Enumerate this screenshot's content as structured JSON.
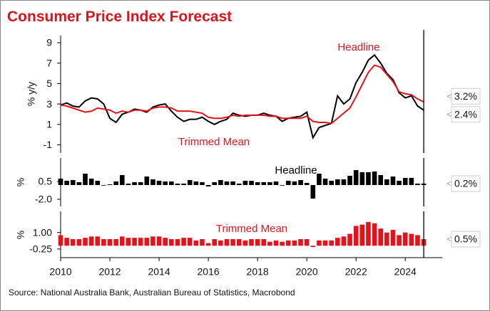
{
  "title": "Consumer Price Index Forecast",
  "source": "Source: National Australia Bank, Australian Bureau of Statistics, Macrobond",
  "chart_data": [
    {
      "type": "line",
      "ylabel": "% y/y",
      "xlim": [
        2010,
        2025.5
      ],
      "ylim": [
        -1.8,
        9.7
      ],
      "yticks": [
        -1,
        1,
        3,
        5,
        7,
        9
      ],
      "vline": 2024.75,
      "x": [
        2010,
        2010.25,
        2010.5,
        2010.75,
        2011,
        2011.25,
        2011.5,
        2011.75,
        2012,
        2012.25,
        2012.5,
        2012.75,
        2013,
        2013.25,
        2013.5,
        2013.75,
        2014,
        2014.25,
        2014.5,
        2014.75,
        2015,
        2015.25,
        2015.5,
        2015.75,
        2016,
        2016.25,
        2016.5,
        2016.75,
        2017,
        2017.25,
        2017.5,
        2017.75,
        2018,
        2018.25,
        2018.5,
        2018.75,
        2019,
        2019.25,
        2019.5,
        2019.75,
        2020,
        2020.25,
        2020.5,
        2020.75,
        2021,
        2021.25,
        2021.5,
        2021.75,
        2022,
        2022.25,
        2022.5,
        2022.75,
        2023,
        2023.25,
        2023.5,
        2023.75,
        2024,
        2024.25,
        2024.5,
        2024.75
      ],
      "series": [
        {
          "name": "Headline",
          "color": "#000000",
          "end_label": "2.4%",
          "values": [
            2.9,
            3.1,
            2.8,
            2.7,
            3.3,
            3.6,
            3.5,
            3.0,
            1.6,
            1.2,
            2.0,
            2.2,
            2.5,
            2.4,
            2.2,
            2.7,
            2.9,
            3.0,
            2.3,
            1.7,
            1.3,
            1.5,
            1.5,
            1.7,
            1.3,
            1.0,
            1.3,
            1.5,
            2.1,
            1.9,
            1.8,
            1.9,
            1.9,
            2.1,
            1.9,
            1.8,
            1.3,
            1.6,
            1.7,
            1.8,
            2.2,
            -0.3,
            0.7,
            0.9,
            1.1,
            3.8,
            3.0,
            3.5,
            5.1,
            6.1,
            7.3,
            7.8,
            7.0,
            6.0,
            5.4,
            4.1,
            3.6,
            3.8,
            2.8,
            2.4
          ]
        },
        {
          "name": "Trimmed Mean",
          "color": "#e4131b",
          "end_label": "3.2%",
          "values": [
            2.9,
            2.8,
            2.6,
            2.4,
            2.2,
            2.3,
            2.6,
            2.5,
            2.4,
            2.1,
            2.3,
            2.2,
            2.4,
            2.4,
            2.3,
            2.6,
            2.7,
            2.7,
            2.6,
            2.3,
            2.3,
            2.3,
            2.2,
            2.1,
            1.7,
            1.6,
            1.6,
            1.7,
            1.9,
            1.8,
            1.9,
            1.9,
            1.9,
            1.9,
            1.8,
            1.8,
            1.6,
            1.6,
            1.6,
            1.6,
            1.8,
            1.3,
            1.2,
            1.2,
            1.1,
            1.6,
            2.1,
            2.6,
            3.7,
            4.9,
            6.1,
            6.8,
            6.6,
            5.9,
            5.2,
            4.2,
            4.0,
            3.9,
            3.5,
            3.2
          ]
        }
      ]
    },
    {
      "type": "bar",
      "ylabel": "%",
      "annotation": "Headline",
      "color": "#000000",
      "end_label": "0.2%",
      "xlim": [
        2010,
        2025.5
      ],
      "ylim": [
        -3,
        3.8
      ],
      "yticks": [
        {
          "value": -2,
          "label": "-2.0"
        },
        0.5
      ],
      "vline": 2024.75,
      "x": [
        2010,
        2010.25,
        2010.5,
        2010.75,
        2011,
        2011.25,
        2011.5,
        2011.75,
        2012,
        2012.25,
        2012.5,
        2012.75,
        2013,
        2013.25,
        2013.5,
        2013.75,
        2014,
        2014.25,
        2014.5,
        2014.75,
        2015,
        2015.25,
        2015.5,
        2015.75,
        2016,
        2016.25,
        2016.5,
        2016.75,
        2017,
        2017.25,
        2017.5,
        2017.75,
        2018,
        2018.25,
        2018.5,
        2018.75,
        2019,
        2019.25,
        2019.5,
        2019.75,
        2020,
        2020.25,
        2020.5,
        2020.75,
        2021,
        2021.25,
        2021.5,
        2021.75,
        2022,
        2022.25,
        2022.5,
        2022.75,
        2023,
        2023.25,
        2023.5,
        2023.75,
        2024,
        2024.25,
        2024.5,
        2024.75
      ],
      "values": [
        0.9,
        0.6,
        0.7,
        0.4,
        1.6,
        0.9,
        0.6,
        0.0,
        0.1,
        0.5,
        1.4,
        0.2,
        0.4,
        0.4,
        1.2,
        0.8,
        0.6,
        0.5,
        0.5,
        0.2,
        0.2,
        0.7,
        0.5,
        0.4,
        -0.2,
        0.4,
        0.7,
        0.5,
        0.5,
        0.2,
        0.6,
        0.6,
        0.4,
        0.4,
        0.4,
        0.5,
        0.0,
        0.6,
        0.5,
        0.7,
        0.3,
        -1.9,
        1.6,
        0.9,
        0.6,
        0.8,
        0.8,
        1.3,
        2.1,
        1.8,
        1.8,
        1.9,
        1.4,
        0.8,
        1.2,
        0.6,
        1.0,
        1.0,
        0.2,
        0.2
      ]
    },
    {
      "type": "bar",
      "ylabel": "%",
      "annotation": "Trimmed Mean",
      "color": "#e4131b",
      "end_label": "0.5%",
      "xlim": [
        2010,
        2025.5
      ],
      "xticks": [
        2010,
        2012,
        2014,
        2016,
        2018,
        2020,
        2022,
        2024
      ],
      "ylim": [
        -0.9,
        2.6
      ],
      "yticks": [
        -0.25,
        {
          "value": 1,
          "label": "1.00"
        }
      ],
      "vline": 2024.75,
      "x": [
        2010,
        2010.25,
        2010.5,
        2010.75,
        2011,
        2011.25,
        2011.5,
        2011.75,
        2012,
        2012.25,
        2012.5,
        2012.75,
        2013,
        2013.25,
        2013.5,
        2013.75,
        2014,
        2014.25,
        2014.5,
        2014.75,
        2015,
        2015.25,
        2015.5,
        2015.75,
        2016,
        2016.25,
        2016.5,
        2016.75,
        2017,
        2017.25,
        2017.5,
        2017.75,
        2018,
        2018.25,
        2018.5,
        2018.75,
        2019,
        2019.25,
        2019.5,
        2019.75,
        2020,
        2020.25,
        2020.5,
        2020.75,
        2021,
        2021.25,
        2021.5,
        2021.75,
        2022,
        2022.25,
        2022.5,
        2022.75,
        2023,
        2023.25,
        2023.5,
        2023.75,
        2024,
        2024.25,
        2024.5,
        2024.75
      ],
      "values": [
        0.8,
        0.6,
        0.5,
        0.5,
        0.6,
        0.7,
        0.7,
        0.5,
        0.5,
        0.5,
        0.7,
        0.6,
        0.6,
        0.6,
        0.6,
        0.7,
        0.7,
        0.6,
        0.5,
        0.5,
        0.6,
        0.6,
        0.4,
        0.5,
        0.2,
        0.5,
        0.4,
        0.5,
        0.5,
        0.5,
        0.4,
        0.5,
        0.5,
        0.5,
        0.3,
        0.4,
        0.3,
        0.4,
        0.4,
        0.5,
        0.5,
        -0.1,
        0.4,
        0.4,
        0.4,
        0.6,
        0.7,
        0.9,
        1.5,
        1.6,
        1.8,
        1.7,
        1.3,
        1.0,
        1.2,
        0.8,
        1.0,
        0.9,
        0.8,
        0.5
      ]
    }
  ]
}
